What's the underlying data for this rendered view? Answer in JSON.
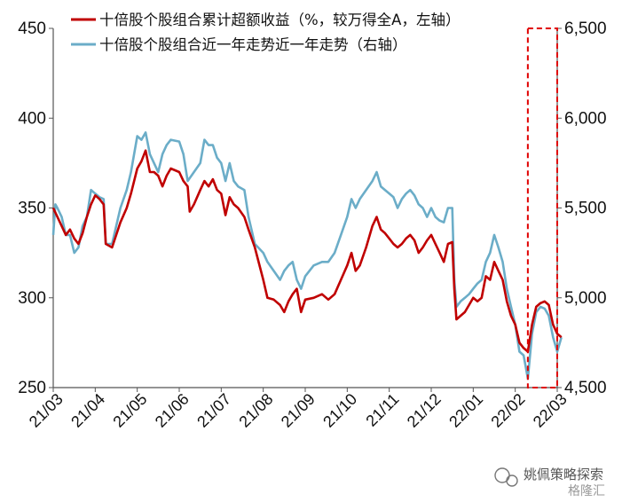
{
  "chart_data": {
    "type": "line",
    "title": "",
    "xlabel": "",
    "ylabel": "",
    "x_ticks": [
      "21/03",
      "21/04",
      "21/05",
      "21/06",
      "21/07",
      "21/08",
      "21/09",
      "21/10",
      "21/11",
      "21/12",
      "22/01",
      "22/02",
      "22/03"
    ],
    "ylim_left": [
      250,
      450
    ],
    "yticks_left": [
      "250",
      "300",
      "350",
      "400",
      "450"
    ],
    "ylim_right": [
      4500,
      6500
    ],
    "yticks_right": [
      "4,500",
      "5,000",
      "5,500",
      "6,000",
      "6,500"
    ],
    "grid": false,
    "legend_position": "top",
    "series": [
      {
        "name": "十倍股个股组合累计超额收益（%，较万得全A，左轴）",
        "axis": "left",
        "color": "#C00000",
        "points": [
          [
            0.0,
            350
          ],
          [
            0.1,
            345
          ],
          [
            0.2,
            340
          ],
          [
            0.3,
            335
          ],
          [
            0.4,
            338
          ],
          [
            0.5,
            333
          ],
          [
            0.6,
            330
          ],
          [
            0.7,
            336
          ],
          [
            0.8,
            345
          ],
          [
            0.9,
            352
          ],
          [
            1.0,
            357
          ],
          [
            1.05,
            356
          ],
          [
            1.1,
            355
          ],
          [
            1.2,
            352
          ],
          [
            1.25,
            330
          ],
          [
            1.4,
            328
          ],
          [
            1.5,
            335
          ],
          [
            1.6,
            342
          ],
          [
            1.75,
            350
          ],
          [
            1.85,
            358
          ],
          [
            2.0,
            372
          ],
          [
            2.1,
            376
          ],
          [
            2.2,
            382
          ],
          [
            2.3,
            370
          ],
          [
            2.4,
            370
          ],
          [
            2.5,
            368
          ],
          [
            2.6,
            362
          ],
          [
            2.7,
            368
          ],
          [
            2.8,
            372
          ],
          [
            3.0,
            370
          ],
          [
            3.1,
            365
          ],
          [
            3.2,
            362
          ],
          [
            3.25,
            348
          ],
          [
            3.35,
            352
          ],
          [
            3.5,
            360
          ],
          [
            3.6,
            365
          ],
          [
            3.7,
            362
          ],
          [
            3.8,
            366
          ],
          [
            3.9,
            360
          ],
          [
            4.0,
            358
          ],
          [
            4.1,
            346
          ],
          [
            4.2,
            356
          ],
          [
            4.3,
            352
          ],
          [
            4.4,
            350
          ],
          [
            4.55,
            345
          ],
          [
            4.65,
            338
          ],
          [
            4.8,
            328
          ],
          [
            5.0,
            310
          ],
          [
            5.1,
            300
          ],
          [
            5.25,
            299
          ],
          [
            5.4,
            296
          ],
          [
            5.5,
            292
          ],
          [
            5.6,
            298
          ],
          [
            5.7,
            302
          ],
          [
            5.8,
            305
          ],
          [
            5.9,
            292
          ],
          [
            6.0,
            299
          ],
          [
            6.2,
            300
          ],
          [
            6.4,
            302
          ],
          [
            6.55,
            299
          ],
          [
            6.7,
            302
          ],
          [
            6.85,
            310
          ],
          [
            7.0,
            318
          ],
          [
            7.1,
            325
          ],
          [
            7.2,
            315
          ],
          [
            7.3,
            318
          ],
          [
            7.45,
            328
          ],
          [
            7.6,
            340
          ],
          [
            7.7,
            345
          ],
          [
            7.8,
            338
          ],
          [
            7.9,
            336
          ],
          [
            8.0,
            333
          ],
          [
            8.1,
            330
          ],
          [
            8.2,
            328
          ],
          [
            8.3,
            330
          ],
          [
            8.4,
            333
          ],
          [
            8.5,
            335
          ],
          [
            8.6,
            332
          ],
          [
            8.7,
            325
          ],
          [
            8.8,
            328
          ],
          [
            8.9,
            332
          ],
          [
            9.0,
            335
          ],
          [
            9.1,
            330
          ],
          [
            9.2,
            325
          ],
          [
            9.3,
            320
          ],
          [
            9.4,
            330
          ],
          [
            9.5,
            331
          ],
          [
            9.55,
            305
          ],
          [
            9.6,
            288
          ],
          [
            9.7,
            290
          ],
          [
            9.8,
            292
          ],
          [
            9.9,
            296
          ],
          [
            10.0,
            300
          ],
          [
            10.1,
            298
          ],
          [
            10.2,
            300
          ],
          [
            10.3,
            312
          ],
          [
            10.4,
            310
          ],
          [
            10.5,
            320
          ],
          [
            10.6,
            315
          ],
          [
            10.7,
            310
          ],
          [
            10.8,
            298
          ],
          [
            10.9,
            290
          ],
          [
            11.0,
            285
          ],
          [
            11.1,
            275
          ],
          [
            11.2,
            272
          ],
          [
            11.3,
            270
          ],
          [
            11.4,
            285
          ],
          [
            11.5,
            295
          ],
          [
            11.6,
            297
          ],
          [
            11.7,
            298
          ],
          [
            11.8,
            296
          ],
          [
            11.9,
            285
          ],
          [
            12.0,
            280
          ],
          [
            12.1,
            278
          ]
        ]
      },
      {
        "name": "十倍股个股组合近一年走势近一年走势（右轴）",
        "axis": "right",
        "color": "#6BADC8",
        "points": [
          [
            0.0,
            5350
          ],
          [
            0.05,
            5520
          ],
          [
            0.1,
            5500
          ],
          [
            0.2,
            5450
          ],
          [
            0.3,
            5350
          ],
          [
            0.4,
            5350
          ],
          [
            0.5,
            5250
          ],
          [
            0.6,
            5280
          ],
          [
            0.7,
            5400
          ],
          [
            0.8,
            5450
          ],
          [
            0.9,
            5600
          ],
          [
            1.0,
            5580
          ],
          [
            1.1,
            5560
          ],
          [
            1.2,
            5550
          ],
          [
            1.25,
            5300
          ],
          [
            1.4,
            5300
          ],
          [
            1.5,
            5400
          ],
          [
            1.6,
            5500
          ],
          [
            1.75,
            5600
          ],
          [
            1.85,
            5700
          ],
          [
            2.0,
            5900
          ],
          [
            2.1,
            5880
          ],
          [
            2.2,
            5920
          ],
          [
            2.3,
            5800
          ],
          [
            2.4,
            5750
          ],
          [
            2.5,
            5700
          ],
          [
            2.6,
            5800
          ],
          [
            2.7,
            5850
          ],
          [
            2.8,
            5880
          ],
          [
            3.0,
            5870
          ],
          [
            3.1,
            5800
          ],
          [
            3.2,
            5650
          ],
          [
            3.35,
            5700
          ],
          [
            3.5,
            5750
          ],
          [
            3.6,
            5880
          ],
          [
            3.7,
            5850
          ],
          [
            3.8,
            5850
          ],
          [
            3.9,
            5780
          ],
          [
            4.0,
            5750
          ],
          [
            4.1,
            5650
          ],
          [
            4.2,
            5750
          ],
          [
            4.3,
            5650
          ],
          [
            4.4,
            5620
          ],
          [
            4.55,
            5600
          ],
          [
            4.65,
            5450
          ],
          [
            4.8,
            5300
          ],
          [
            5.0,
            5250
          ],
          [
            5.1,
            5200
          ],
          [
            5.25,
            5150
          ],
          [
            5.4,
            5100
          ],
          [
            5.5,
            5150
          ],
          [
            5.6,
            5180
          ],
          [
            5.7,
            5200
          ],
          [
            5.8,
            5100
          ],
          [
            5.9,
            5050
          ],
          [
            6.0,
            5120
          ],
          [
            6.2,
            5180
          ],
          [
            6.4,
            5200
          ],
          [
            6.55,
            5200
          ],
          [
            6.7,
            5250
          ],
          [
            6.85,
            5350
          ],
          [
            7.0,
            5450
          ],
          [
            7.1,
            5550
          ],
          [
            7.2,
            5500
          ],
          [
            7.3,
            5550
          ],
          [
            7.45,
            5600
          ],
          [
            7.6,
            5650
          ],
          [
            7.7,
            5700
          ],
          [
            7.8,
            5620
          ],
          [
            7.9,
            5600
          ],
          [
            8.0,
            5580
          ],
          [
            8.1,
            5560
          ],
          [
            8.2,
            5500
          ],
          [
            8.3,
            5550
          ],
          [
            8.4,
            5580
          ],
          [
            8.5,
            5600
          ],
          [
            8.6,
            5570
          ],
          [
            8.7,
            5520
          ],
          [
            8.8,
            5500
          ],
          [
            8.9,
            5450
          ],
          [
            9.0,
            5500
          ],
          [
            9.1,
            5450
          ],
          [
            9.2,
            5430
          ],
          [
            9.3,
            5420
          ],
          [
            9.4,
            5500
          ],
          [
            9.5,
            5500
          ],
          [
            9.55,
            5100
          ],
          [
            9.6,
            4950
          ],
          [
            9.7,
            4980
          ],
          [
            9.8,
            5000
          ],
          [
            9.9,
            5020
          ],
          [
            10.0,
            5050
          ],
          [
            10.1,
            5080
          ],
          [
            10.2,
            5100
          ],
          [
            10.3,
            5200
          ],
          [
            10.4,
            5250
          ],
          [
            10.5,
            5350
          ],
          [
            10.6,
            5280
          ],
          [
            10.7,
            5200
          ],
          [
            10.8,
            5050
          ],
          [
            10.9,
            4950
          ],
          [
            11.0,
            4850
          ],
          [
            11.1,
            4700
          ],
          [
            11.2,
            4680
          ],
          [
            11.3,
            4550
          ],
          [
            11.4,
            4800
          ],
          [
            11.5,
            4920
          ],
          [
            11.6,
            4950
          ],
          [
            11.7,
            4940
          ],
          [
            11.8,
            4900
          ],
          [
            11.9,
            4780
          ],
          [
            12.0,
            4700
          ],
          [
            12.1,
            4780
          ]
        ]
      }
    ],
    "annotations": [
      {
        "type": "dashed-box",
        "color": "#E00000",
        "x_range": [
          11.3,
          12.0
        ],
        "y_range_right": [
          4500,
          6500
        ]
      }
    ]
  },
  "watermark": {
    "text": "姚佩策略探索",
    "sub": "格隆汇"
  }
}
